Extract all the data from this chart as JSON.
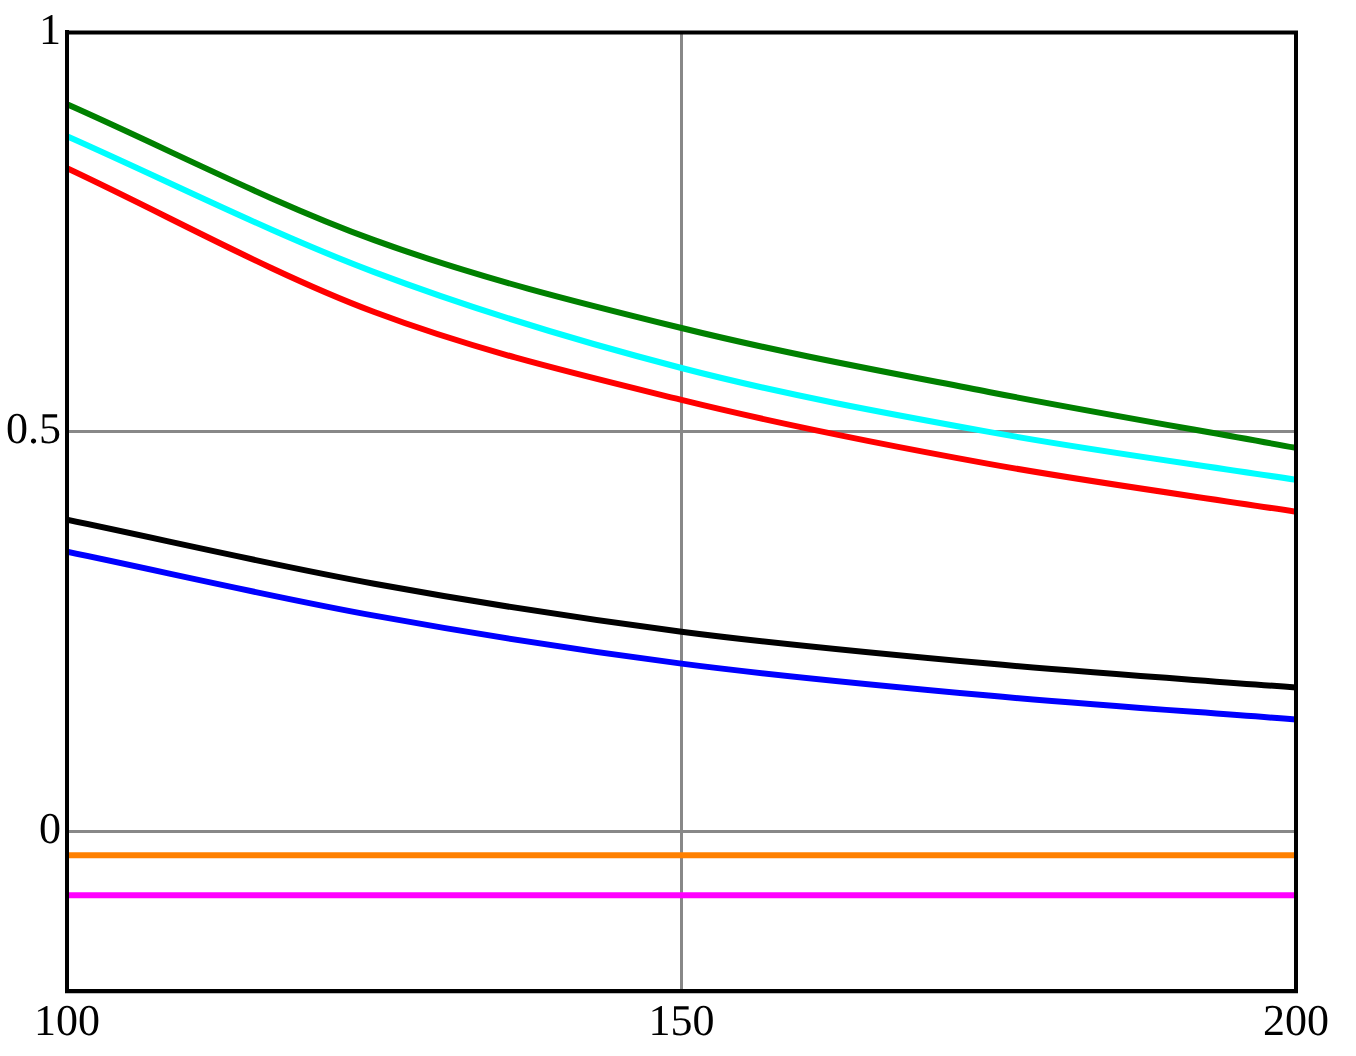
{
  "chart_data": {
    "type": "line",
    "x": [
      100,
      125,
      150,
      175,
      200
    ],
    "series": [
      {
        "color": "#008000",
        "values": [
          0.91,
          0.74,
          0.63,
          0.55,
          0.48
        ]
      },
      {
        "color": "#00ffff",
        "values": [
          0.87,
          0.7,
          0.58,
          0.5,
          0.44
        ]
      },
      {
        "color": "#ff0000",
        "values": [
          0.83,
          0.65,
          0.54,
          0.46,
          0.4
        ]
      },
      {
        "color": "#000000",
        "values": [
          0.39,
          0.31,
          0.25,
          0.21,
          0.18
        ]
      },
      {
        "color": "#0000ff",
        "values": [
          0.35,
          0.27,
          0.21,
          0.17,
          0.14
        ]
      },
      {
        "color": "#ff8000",
        "values": [
          -0.03,
          -0.03,
          -0.03,
          -0.03,
          -0.03
        ]
      },
      {
        "color": "#ff00ff",
        "values": [
          -0.08,
          -0.08,
          -0.08,
          -0.08,
          -0.08
        ]
      }
    ],
    "xlim": [
      100,
      200
    ],
    "xticks": [
      100,
      150,
      200
    ],
    "ylim": [
      -0.2,
      1
    ],
    "yticks": [
      0,
      0.5,
      1
    ],
    "grid": true,
    "legend": false,
    "marker": "none",
    "line_style": "solid"
  }
}
